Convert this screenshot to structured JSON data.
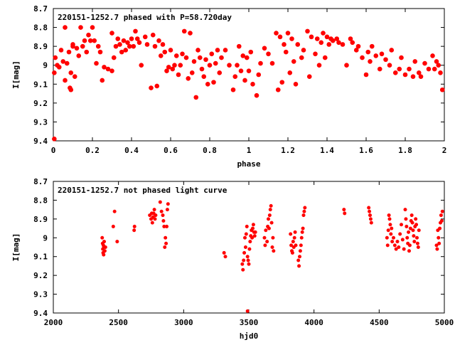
{
  "chart_data": [
    {
      "type": "scatter",
      "title": "220151-1252.7 phased with P=58.720day",
      "xlabel": "phase",
      "ylabel": "I[mag]",
      "xlim": [
        0,
        2
      ],
      "ylim": [
        8.7,
        9.4
      ],
      "y_inverted": true,
      "xticks": [
        "0",
        "0.2",
        "0.4",
        "0.6",
        "0.8",
        "1",
        "1.2",
        "1.4",
        "1.6",
        "1.8",
        "2"
      ],
      "yticks": [
        "8.7",
        "8.8",
        "8.9",
        "9",
        "9.1",
        "9.2",
        "9.3",
        "9.4"
      ],
      "marker_color": "#ff0000",
      "grid": false,
      "points": [
        [
          0.005,
          9.04
        ],
        [
          0.01,
          8.96
        ],
        [
          0.02,
          9.0
        ],
        [
          0.03,
          9.01
        ],
        [
          0.04,
          8.92
        ],
        [
          0.05,
          8.98
        ],
        [
          0.06,
          9.08
        ],
        [
          0.07,
          8.99
        ],
        [
          0.08,
          8.93
        ],
        [
          0.085,
          9.12
        ],
        [
          0.09,
          9.04
        ],
        [
          0.1,
          8.9
        ],
        [
          0.11,
          9.06
        ],
        [
          0.12,
          8.91
        ],
        [
          0.13,
          8.95
        ],
        [
          0.06,
          8.8
        ],
        [
          0.09,
          9.13
        ],
        [
          0.1,
          8.89
        ],
        [
          0.14,
          8.8
        ],
        [
          0.15,
          8.9
        ],
        [
          0.16,
          8.87
        ],
        [
          0.17,
          8.93
        ],
        [
          0.18,
          8.84
        ],
        [
          0.19,
          8.87
        ],
        [
          0.2,
          8.8
        ],
        [
          0.21,
          8.87
        ],
        [
          0.22,
          8.99
        ],
        [
          0.23,
          8.9
        ],
        [
          0.24,
          8.93
        ],
        [
          0.25,
          9.08
        ],
        [
          0.26,
          9.01
        ],
        [
          0.28,
          9.02
        ],
        [
          0.3,
          9.03
        ],
        [
          0.3,
          8.83
        ],
        [
          0.31,
          8.96
        ],
        [
          0.32,
          8.9
        ],
        [
          0.33,
          8.86
        ],
        [
          0.34,
          8.89
        ],
        [
          0.35,
          8.93
        ],
        [
          0.36,
          8.87
        ],
        [
          0.37,
          8.92
        ],
        [
          0.38,
          8.88
        ],
        [
          0.39,
          8.9
        ],
        [
          0.4,
          8.86
        ],
        [
          0.41,
          8.9
        ],
        [
          0.42,
          8.82
        ],
        [
          0.43,
          8.86
        ],
        [
          0.44,
          8.88
        ],
        [
          0.45,
          9.0
        ],
        [
          0.47,
          8.85
        ],
        [
          0.48,
          8.89
        ],
        [
          0.5,
          9.12
        ],
        [
          0.51,
          8.84
        ],
        [
          0.52,
          8.9
        ],
        [
          0.53,
          9.11
        ],
        [
          0.54,
          8.87
        ],
        [
          0.55,
          8.95
        ],
        [
          0.56,
          8.89
        ],
        [
          0.57,
          8.93
        ],
        [
          0.58,
          9.03
        ],
        [
          0.59,
          9.01
        ],
        [
          0.6,
          8.92
        ],
        [
          0.61,
          9.02
        ],
        [
          0.62,
          9.0
        ],
        [
          0.63,
          8.95
        ],
        [
          0.64,
          9.05
        ],
        [
          0.65,
          9.0
        ],
        [
          0.66,
          8.94
        ],
        [
          0.67,
          8.82
        ],
        [
          0.68,
          8.96
        ],
        [
          0.69,
          9.07
        ],
        [
          0.7,
          8.83
        ],
        [
          0.71,
          9.04
        ],
        [
          0.72,
          8.98
        ],
        [
          0.73,
          9.17
        ],
        [
          0.74,
          8.92
        ],
        [
          0.75,
          8.96
        ],
        [
          0.76,
          9.02
        ],
        [
          0.77,
          9.06
        ],
        [
          0.78,
          8.97
        ],
        [
          0.79,
          9.1
        ],
        [
          0.8,
          9.0
        ],
        [
          0.81,
          8.94
        ],
        [
          0.82,
          9.09
        ],
        [
          0.83,
          8.99
        ],
        [
          0.84,
          8.92
        ],
        [
          0.85,
          9.04
        ],
        [
          0.86,
          8.96
        ],
        [
          0.88,
          8.92
        ],
        [
          0.9,
          9.0
        ],
        [
          0.92,
          9.13
        ],
        [
          0.93,
          9.06
        ],
        [
          0.94,
          9.0
        ],
        [
          0.95,
          8.9
        ],
        [
          0.96,
          9.03
        ],
        [
          0.97,
          8.95
        ],
        [
          0.98,
          9.08
        ],
        [
          0.99,
          8.96
        ],
        [
          1.0,
          9.03
        ],
        [
          1.01,
          8.93
        ],
        [
          1.02,
          9.1
        ],
        [
          1.04,
          9.16
        ],
        [
          1.05,
          9.05
        ],
        [
          1.06,
          8.99
        ],
        [
          1.08,
          8.91
        ],
        [
          1.1,
          8.94
        ],
        [
          1.12,
          8.99
        ],
        [
          1.14,
          8.83
        ],
        [
          1.15,
          9.13
        ],
        [
          1.16,
          8.85
        ],
        [
          1.17,
          9.09
        ],
        [
          1.18,
          8.89
        ],
        [
          1.19,
          8.93
        ],
        [
          1.2,
          8.83
        ],
        [
          1.21,
          9.04
        ],
        [
          1.22,
          8.86
        ],
        [
          1.23,
          8.98
        ],
        [
          1.24,
          9.1
        ],
        [
          1.25,
          8.89
        ],
        [
          1.27,
          8.96
        ],
        [
          1.28,
          8.92
        ],
        [
          1.3,
          8.82
        ],
        [
          1.31,
          9.06
        ],
        [
          1.32,
          8.85
        ],
        [
          1.34,
          8.94
        ],
        [
          1.35,
          8.86
        ],
        [
          1.36,
          9.0
        ],
        [
          1.37,
          8.88
        ],
        [
          1.38,
          8.83
        ],
        [
          1.39,
          8.96
        ],
        [
          1.4,
          8.85
        ],
        [
          1.41,
          8.89
        ],
        [
          1.42,
          8.86
        ],
        [
          1.43,
          8.87
        ],
        [
          1.45,
          8.86
        ],
        [
          1.46,
          8.88
        ],
        [
          1.48,
          8.89
        ],
        [
          1.5,
          9.0
        ],
        [
          1.52,
          8.86
        ],
        [
          1.53,
          8.88
        ],
        [
          1.55,
          8.92
        ],
        [
          1.56,
          8.9
        ],
        [
          1.58,
          8.96
        ],
        [
          1.6,
          9.05
        ],
        [
          1.61,
          8.93
        ],
        [
          1.62,
          8.98
        ],
        [
          1.63,
          8.9
        ],
        [
          1.65,
          8.95
        ],
        [
          1.67,
          9.02
        ],
        [
          1.68,
          8.94
        ],
        [
          1.7,
          8.97
        ],
        [
          1.72,
          9.0
        ],
        [
          1.73,
          8.92
        ],
        [
          1.75,
          9.04
        ],
        [
          1.77,
          9.02
        ],
        [
          1.78,
          8.96
        ],
        [
          1.8,
          9.05
        ],
        [
          1.82,
          9.02
        ],
        [
          1.84,
          9.06
        ],
        [
          1.85,
          8.98
        ],
        [
          1.87,
          9.04
        ],
        [
          1.88,
          9.06
        ],
        [
          1.9,
          8.99
        ],
        [
          1.92,
          9.02
        ],
        [
          1.94,
          8.95
        ],
        [
          1.95,
          9.02
        ],
        [
          1.96,
          8.98
        ],
        [
          1.97,
          9.0
        ],
        [
          1.98,
          9.04
        ],
        [
          1.99,
          9.13
        ],
        [
          0.005,
          9.39
        ]
      ]
    },
    {
      "type": "scatter",
      "title": "220151-1252.7 not phased light curve",
      "xlabel": "hjd0",
      "ylabel": "I[mag]",
      "xlim": [
        2000,
        5000
      ],
      "ylim": [
        8.7,
        9.4
      ],
      "y_inverted": true,
      "xticks": [
        "2000",
        "2500",
        "3000",
        "3500",
        "4000",
        "4500",
        "5000"
      ],
      "yticks": [
        "8.7",
        "8.8",
        "8.9",
        "9",
        "9.1",
        "9.2",
        "9.3",
        "9.4"
      ],
      "marker_color": "#ff0000",
      "grid": false,
      "points": [
        [
          2375,
          9.0
        ],
        [
          2378,
          9.03
        ],
        [
          2380,
          9.06
        ],
        [
          2382,
          9.08
        ],
        [
          2384,
          9.04
        ],
        [
          2386,
          9.09
        ],
        [
          2388,
          9.05
        ],
        [
          2390,
          9.02
        ],
        [
          2395,
          9.07
        ],
        [
          2400,
          9.05
        ],
        [
          2460,
          8.94
        ],
        [
          2470,
          8.86
        ],
        [
          2490,
          9.02
        ],
        [
          2620,
          8.96
        ],
        [
          2623,
          8.94
        ],
        [
          2740,
          8.88
        ],
        [
          2750,
          8.9
        ],
        [
          2755,
          8.87
        ],
        [
          2760,
          8.92
        ],
        [
          2765,
          8.89
        ],
        [
          2770,
          8.87
        ],
        [
          2775,
          8.85
        ],
        [
          2780,
          8.9
        ],
        [
          2785,
          8.88
        ],
        [
          2820,
          8.81
        ],
        [
          2830,
          8.86
        ],
        [
          2840,
          8.88
        ],
        [
          2845,
          8.91
        ],
        [
          2850,
          8.94
        ],
        [
          2855,
          9.05
        ],
        [
          2860,
          9.0
        ],
        [
          2865,
          9.03
        ],
        [
          2870,
          8.94
        ],
        [
          2875,
          8.85
        ],
        [
          2880,
          8.82
        ],
        [
          3310,
          9.08
        ],
        [
          3320,
          9.1
        ],
        [
          3450,
          9.14
        ],
        [
          3455,
          9.17
        ],
        [
          3460,
          9.12
        ],
        [
          3465,
          9.08
        ],
        [
          3470,
          9.0
        ],
        [
          3475,
          9.05
        ],
        [
          3480,
          8.98
        ],
        [
          3485,
          8.94
        ],
        [
          3490,
          9.1
        ],
        [
          3495,
          9.12
        ],
        [
          3500,
          9.14
        ],
        [
          3505,
          9.06
        ],
        [
          3510,
          9.02
        ],
        [
          3515,
          8.99
        ],
        [
          3520,
          8.96
        ],
        [
          3525,
          9.0
        ],
        [
          3530,
          8.95
        ],
        [
          3535,
          8.93
        ],
        [
          3540,
          8.97
        ],
        [
          3545,
          8.99
        ],
        [
          3550,
          8.97
        ],
        [
          3490,
          9.39
        ],
        [
          3620,
          9.0
        ],
        [
          3625,
          9.04
        ],
        [
          3630,
          8.96
        ],
        [
          3640,
          9.02
        ],
        [
          3645,
          8.94
        ],
        [
          3650,
          8.9
        ],
        [
          3655,
          8.95
        ],
        [
          3660,
          8.88
        ],
        [
          3665,
          8.85
        ],
        [
          3670,
          8.83
        ],
        [
          3675,
          8.92
        ],
        [
          3680,
          9.05
        ],
        [
          3685,
          9.0
        ],
        [
          3690,
          9.07
        ],
        [
          3820,
          8.98
        ],
        [
          3825,
          9.04
        ],
        [
          3830,
          9.07
        ],
        [
          3835,
          9.08
        ],
        [
          3840,
          9.02
        ],
        [
          3845,
          9.05
        ],
        [
          3850,
          9.0
        ],
        [
          3855,
          8.97
        ],
        [
          3860,
          9.04
        ],
        [
          3880,
          9.12
        ],
        [
          3885,
          9.15
        ],
        [
          3890,
          9.1
        ],
        [
          3895,
          9.07
        ],
        [
          3900,
          9.04
        ],
        [
          3905,
          9.0
        ],
        [
          3910,
          8.97
        ],
        [
          3915,
          8.95
        ],
        [
          3920,
          8.88
        ],
        [
          3925,
          8.86
        ],
        [
          3930,
          8.84
        ],
        [
          4230,
          8.85
        ],
        [
          4235,
          8.87
        ],
        [
          4420,
          8.84
        ],
        [
          4425,
          8.86
        ],
        [
          4430,
          8.88
        ],
        [
          4435,
          8.9
        ],
        [
          4440,
          8.92
        ],
        [
          4560,
          9.0
        ],
        [
          4565,
          9.04
        ],
        [
          4570,
          8.96
        ],
        [
          4575,
          8.88
        ],
        [
          4580,
          8.9
        ],
        [
          4585,
          8.93
        ],
        [
          4590,
          8.98
        ],
        [
          4595,
          8.95
        ],
        [
          4600,
          9.02
        ],
        [
          4610,
          9.0
        ],
        [
          4620,
          9.04
        ],
        [
          4630,
          9.06
        ],
        [
          4640,
          9.02
        ],
        [
          4650,
          9.05
        ],
        [
          4660,
          8.98
        ],
        [
          4670,
          8.93
        ],
        [
          4680,
          9.01
        ],
        [
          4690,
          9.06
        ],
        [
          4700,
          8.85
        ],
        [
          4705,
          8.9
        ],
        [
          4710,
          8.94
        ],
        [
          4715,
          9.0
        ],
        [
          4720,
          9.03
        ],
        [
          4725,
          8.97
        ],
        [
          4730,
          9.07
        ],
        [
          4735,
          9.04
        ],
        [
          4740,
          8.95
        ],
        [
          4745,
          8.91
        ],
        [
          4750,
          8.88
        ],
        [
          4755,
          8.92
        ],
        [
          4760,
          8.96
        ],
        [
          4765,
          8.99
        ],
        [
          4770,
          9.02
        ],
        [
          4775,
          8.94
        ],
        [
          4780,
          8.9
        ],
        [
          4785,
          8.93
        ],
        [
          4790,
          9.0
        ],
        [
          4795,
          9.03
        ],
        [
          4800,
          9.05
        ],
        [
          4805,
          8.96
        ],
        [
          4940,
          9.04
        ],
        [
          4945,
          9.06
        ],
        [
          4950,
          8.96
        ],
        [
          4955,
          9.0
        ],
        [
          4960,
          9.03
        ],
        [
          4965,
          8.95
        ],
        [
          4970,
          8.92
        ],
        [
          4975,
          8.88
        ],
        [
          4980,
          8.91
        ],
        [
          4985,
          8.86
        ]
      ]
    }
  ]
}
